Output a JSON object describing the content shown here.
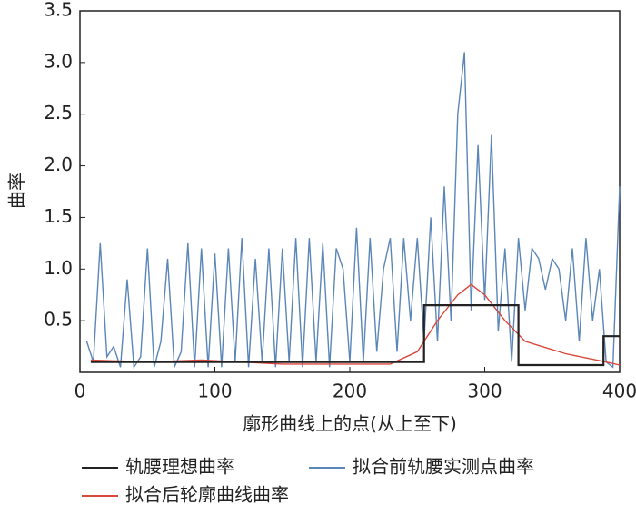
{
  "chart_data": {
    "type": "line",
    "xlabel": "廓形曲线上的点(从上至下)",
    "ylabel": "曲率",
    "xlim": [
      0,
      400
    ],
    "xticks": [
      0,
      100,
      200,
      300,
      400
    ],
    "ylim": [
      0,
      3.5
    ],
    "yticks": [
      {
        "value": 0.5,
        "label": "0.5"
      },
      {
        "value": 1,
        "label": "1.0"
      },
      {
        "value": 1.5,
        "label": "1.5"
      },
      {
        "value": 2,
        "label": "2.0"
      },
      {
        "value": 2.5,
        "label": "2.5"
      },
      {
        "value": 3,
        "label": "3.0"
      },
      {
        "value": 3.5,
        "label": "3.5"
      }
    ],
    "series": [
      {
        "name": "轨腰理想曲率",
        "color": "#222222",
        "x": [
          8,
          255,
          255,
          325,
          325,
          388,
          388,
          400
        ],
        "values": [
          0.1,
          0.1,
          0.65,
          0.65,
          0.07,
          0.07,
          0.35,
          0.35
        ]
      },
      {
        "name": "拟合前轨腰实测点曲率",
        "color": "#5b86b8",
        "x": [
          5,
          10,
          15,
          20,
          25,
          30,
          35,
          40,
          45,
          50,
          55,
          60,
          65,
          70,
          75,
          80,
          85,
          90,
          95,
          100,
          105,
          110,
          115,
          120,
          125,
          130,
          135,
          140,
          145,
          150,
          155,
          160,
          165,
          170,
          175,
          180,
          185,
          190,
          195,
          200,
          205,
          210,
          215,
          220,
          225,
          230,
          235,
          240,
          245,
          250,
          255,
          260,
          265,
          270,
          275,
          280,
          285,
          290,
          295,
          300,
          305,
          310,
          315,
          320,
          325,
          330,
          335,
          340,
          345,
          350,
          355,
          360,
          365,
          370,
          375,
          380,
          385,
          390,
          395,
          400
        ],
        "values": [
          0.3,
          0.1,
          1.25,
          0.15,
          0.25,
          0.05,
          0.9,
          0.05,
          0.15,
          1.2,
          0.05,
          0.3,
          1.1,
          0.05,
          0.2,
          1.25,
          0.05,
          1.2,
          0.05,
          1.15,
          0.05,
          1.2,
          0.1,
          1.3,
          0.05,
          1.1,
          0.1,
          1.2,
          0.05,
          1.2,
          0.1,
          1.3,
          0.05,
          1.3,
          0.1,
          1.25,
          0.05,
          1.2,
          1.0,
          0.1,
          1.4,
          0.1,
          1.3,
          0.2,
          1.0,
          1.3,
          0.2,
          1.3,
          0.5,
          1.3,
          0.3,
          1.5,
          0.3,
          1.8,
          0.5,
          2.5,
          3.1,
          0.6,
          2.2,
          0.7,
          2.3,
          0.4,
          1.2,
          0.1,
          1.3,
          0.6,
          1.2,
          1.1,
          0.8,
          1.1,
          1.0,
          0.5,
          1.2,
          0.3,
          1.3,
          0.5,
          1.0,
          0.1,
          0.05,
          1.8
        ]
      },
      {
        "name": "拟合后轮廓曲线曲率",
        "color": "#d9463a",
        "x": [
          8,
          50,
          90,
          150,
          230,
          250,
          265,
          280,
          290,
          300,
          315,
          330,
          360,
          390,
          400
        ],
        "values": [
          0.12,
          0.1,
          0.12,
          0.08,
          0.08,
          0.2,
          0.5,
          0.75,
          0.85,
          0.75,
          0.5,
          0.3,
          0.18,
          0.1,
          0.07
        ]
      }
    ]
  }
}
